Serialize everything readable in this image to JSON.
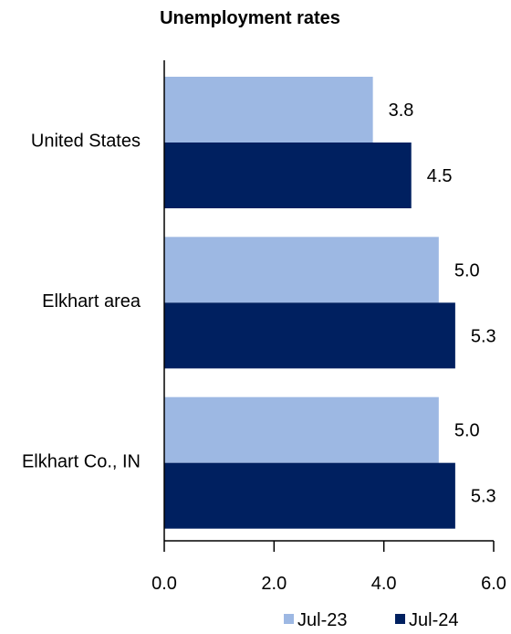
{
  "chart_data": {
    "type": "bar",
    "orientation": "horizontal",
    "title": "Unemployment rates",
    "categories": [
      "United States",
      "Elkhart area",
      "Elkhart Co., IN"
    ],
    "series": [
      {
        "name": "Jul-23",
        "values": [
          3.8,
          5.0,
          5.0
        ],
        "color": "#9db8e3"
      },
      {
        "name": "Jul-24",
        "values": [
          4.5,
          5.3,
          5.3
        ],
        "color": "#002060"
      }
    ],
    "data_labels": [
      [
        "3.8",
        "5.0",
        "5.0"
      ],
      [
        "4.5",
        "5.3",
        "5.3"
      ]
    ],
    "xlim": [
      0,
      6
    ],
    "x_ticks": [
      "0.0",
      "2.0",
      "4.0",
      "6.0"
    ],
    "xlabel": "",
    "ylabel": "",
    "grid": false,
    "legend_position": "bottom"
  }
}
